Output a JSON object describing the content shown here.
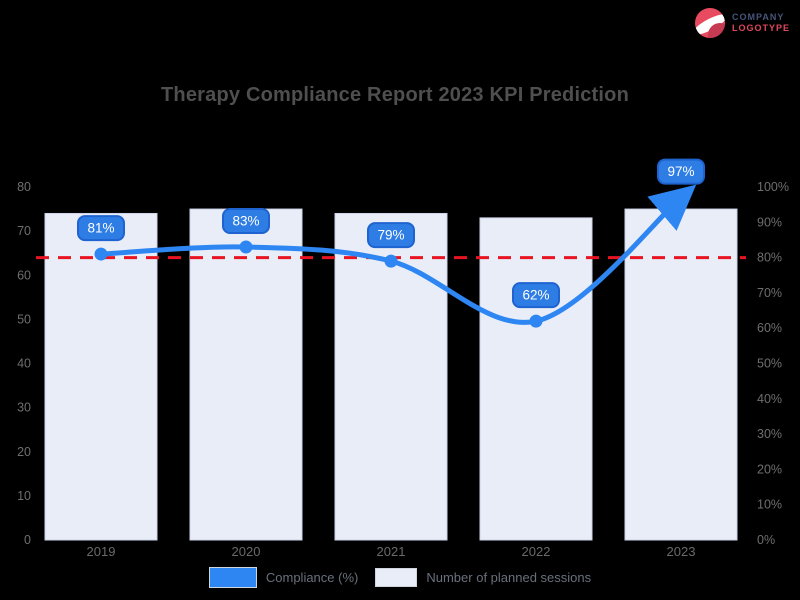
{
  "logo": {
    "line1": "COMPANY",
    "line2": "LOGOTYPE"
  },
  "title": "Therapy Compliance Report 2023 KPI Prediction",
  "chart_data": {
    "type": "bar+line",
    "categories": [
      "2019",
      "2020",
      "2021",
      "2022",
      "2023"
    ],
    "series": [
      {
        "name": "Number of planned sessions",
        "type": "bar",
        "axis": "left",
        "values": [
          74,
          75,
          74,
          73,
          75
        ]
      },
      {
        "name": "Compliance (%)",
        "type": "line",
        "axis": "right",
        "values": [
          81,
          83,
          79,
          62,
          97
        ],
        "point_labels": [
          "81%",
          "83%",
          "79%",
          "62%",
          "97%"
        ]
      }
    ],
    "target_line": {
      "axis": "right",
      "value": 80,
      "style": "dashed"
    },
    "left_axis": {
      "min": 0,
      "max": 80,
      "step": 10,
      "ticks": [
        "80",
        "70",
        "60",
        "50",
        "40",
        "30",
        "20",
        "10",
        "0"
      ]
    },
    "right_axis": {
      "min": 0,
      "max": 100,
      "step": 10,
      "ticks": [
        "100%",
        "90%",
        "80%",
        "70%",
        "60%",
        "50%",
        "40%",
        "30%",
        "20%",
        "10%",
        "0%"
      ]
    },
    "legend": [
      {
        "label": "Compliance (%)",
        "color": "#2e86f2"
      },
      {
        "label": "Number of planned sessions",
        "color": "#e9edf8"
      }
    ],
    "legend_position": "bottom",
    "grid": false,
    "colors": {
      "background": "#000000",
      "title_text": "#4f4f4f",
      "axis_text": "#6e6e6e",
      "bar_fill": "#e9edf8",
      "bar_border": "#ccd4ea",
      "line": "#2e86f2",
      "point": "#2e86f2",
      "bubble_fill": "#2e7de5",
      "bubble_border": "#1e63cf",
      "bubble_text": "#ffffff",
      "target": "#e91421"
    }
  }
}
